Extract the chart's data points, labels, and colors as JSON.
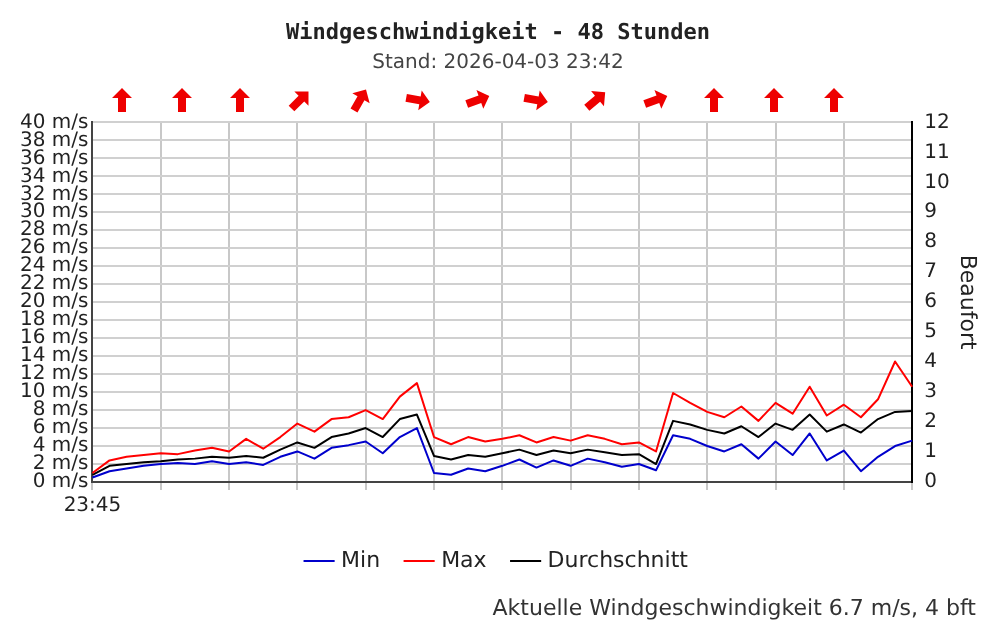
{
  "chart_data": {
    "type": "line",
    "title": "Windgeschwindigkeit - 48 Stunden",
    "subtitle": "Stand: 2026-04-03 23:42",
    "y2label": "Beaufort",
    "annotations": [
      "Aktuelle Windgeschwindigkeit 6.7 m/s, 4 bft"
    ],
    "categories": [
      "23:45",
      null,
      null,
      null,
      null,
      null,
      null,
      null,
      null,
      null,
      null,
      null,
      null,
      null,
      null,
      null,
      null,
      null,
      null,
      null,
      null,
      null,
      null,
      null,
      null,
      null,
      null,
      null,
      null,
      null,
      null,
      null,
      null,
      null,
      null,
      null,
      null,
      null,
      null,
      null,
      null,
      null,
      null,
      null,
      null,
      null,
      null,
      null,
      null
    ],
    "series": [
      {
        "name": "Min",
        "color": "#0000cc",
        "values": [
          0.5,
          1.2,
          1.5,
          1.8,
          2.0,
          2.1,
          2.0,
          2.3,
          2.0,
          2.2,
          1.9,
          2.8,
          3.4,
          2.6,
          3.8,
          4.1,
          4.5,
          3.2,
          5.0,
          6.0,
          1.0,
          0.8,
          1.5,
          1.2,
          1.8,
          2.5,
          1.6,
          2.4,
          1.8,
          2.6,
          2.2,
          1.7,
          2.0,
          1.3,
          5.2,
          4.8,
          4.0,
          3.4,
          4.2,
          2.6,
          4.5,
          3.0,
          5.4,
          2.4,
          3.5,
          1.2,
          2.8,
          4.0,
          4.6
        ]
      },
      {
        "name": "Max",
        "color": "#ff0000",
        "values": [
          1.0,
          2.4,
          2.8,
          3.0,
          3.2,
          3.1,
          3.5,
          3.8,
          3.4,
          4.8,
          3.7,
          5.0,
          6.5,
          5.6,
          7.0,
          7.2,
          8.0,
          7.0,
          9.5,
          11.0,
          5.0,
          4.2,
          5.0,
          4.5,
          4.8,
          5.2,
          4.4,
          5.0,
          4.6,
          5.2,
          4.8,
          4.2,
          4.4,
          3.4,
          9.9,
          8.8,
          7.8,
          7.2,
          8.4,
          6.8,
          8.8,
          7.6,
          10.6,
          7.4,
          8.6,
          7.2,
          9.2,
          13.4,
          10.6
        ]
      },
      {
        "name": "Durchschnitt",
        "color": "#000000",
        "values": [
          0.8,
          1.8,
          2.0,
          2.2,
          2.3,
          2.5,
          2.6,
          2.8,
          2.7,
          2.9,
          2.7,
          3.6,
          4.4,
          3.8,
          5.0,
          5.4,
          6.0,
          5.0,
          7.0,
          7.5,
          2.9,
          2.5,
          3.0,
          2.8,
          3.2,
          3.6,
          3.0,
          3.5,
          3.2,
          3.6,
          3.3,
          3.0,
          3.1,
          2.0,
          6.8,
          6.4,
          5.8,
          5.4,
          6.2,
          5.0,
          6.5,
          5.8,
          7.5,
          5.6,
          6.4,
          5.5,
          7.0,
          7.8,
          7.9
        ]
      }
    ],
    "ylim": [
      0,
      40
    ],
    "yticks": [
      {
        "value": 0,
        "label": "0 m/s"
      },
      {
        "value": 2,
        "label": "2 m/s"
      },
      {
        "value": 4,
        "label": "4 m/s"
      },
      {
        "value": 6,
        "label": "6 m/s"
      },
      {
        "value": 8,
        "label": "8 m/s"
      },
      {
        "value": 10,
        "label": "10 m/s"
      },
      {
        "value": 12,
        "label": "12 m/s"
      },
      {
        "value": 14,
        "label": "14 m/s"
      },
      {
        "value": 16,
        "label": "16 m/s"
      },
      {
        "value": 18,
        "label": "18 m/s"
      },
      {
        "value": 20,
        "label": "20 m/s"
      },
      {
        "value": 22,
        "label": "22 m/s"
      },
      {
        "value": 24,
        "label": "24 m/s"
      },
      {
        "value": 26,
        "label": "26 m/s"
      },
      {
        "value": 28,
        "label": "28 m/s"
      },
      {
        "value": 30,
        "label": "30 m/s"
      },
      {
        "value": 32,
        "label": "32 m/s"
      },
      {
        "value": 34,
        "label": "34 m/s"
      },
      {
        "value": 36,
        "label": "36 m/s"
      },
      {
        "value": 38,
        "label": "38 m/s"
      },
      {
        "value": 40,
        "label": "40 m/s"
      }
    ],
    "y2lim": [
      0,
      12
    ],
    "y2ticks": [
      0,
      1,
      2,
      3,
      4,
      5,
      6,
      7,
      8,
      9,
      10,
      11,
      12
    ],
    "grid": true,
    "legend": "bottom",
    "marker": "none",
    "line_style": "solid"
  }
}
